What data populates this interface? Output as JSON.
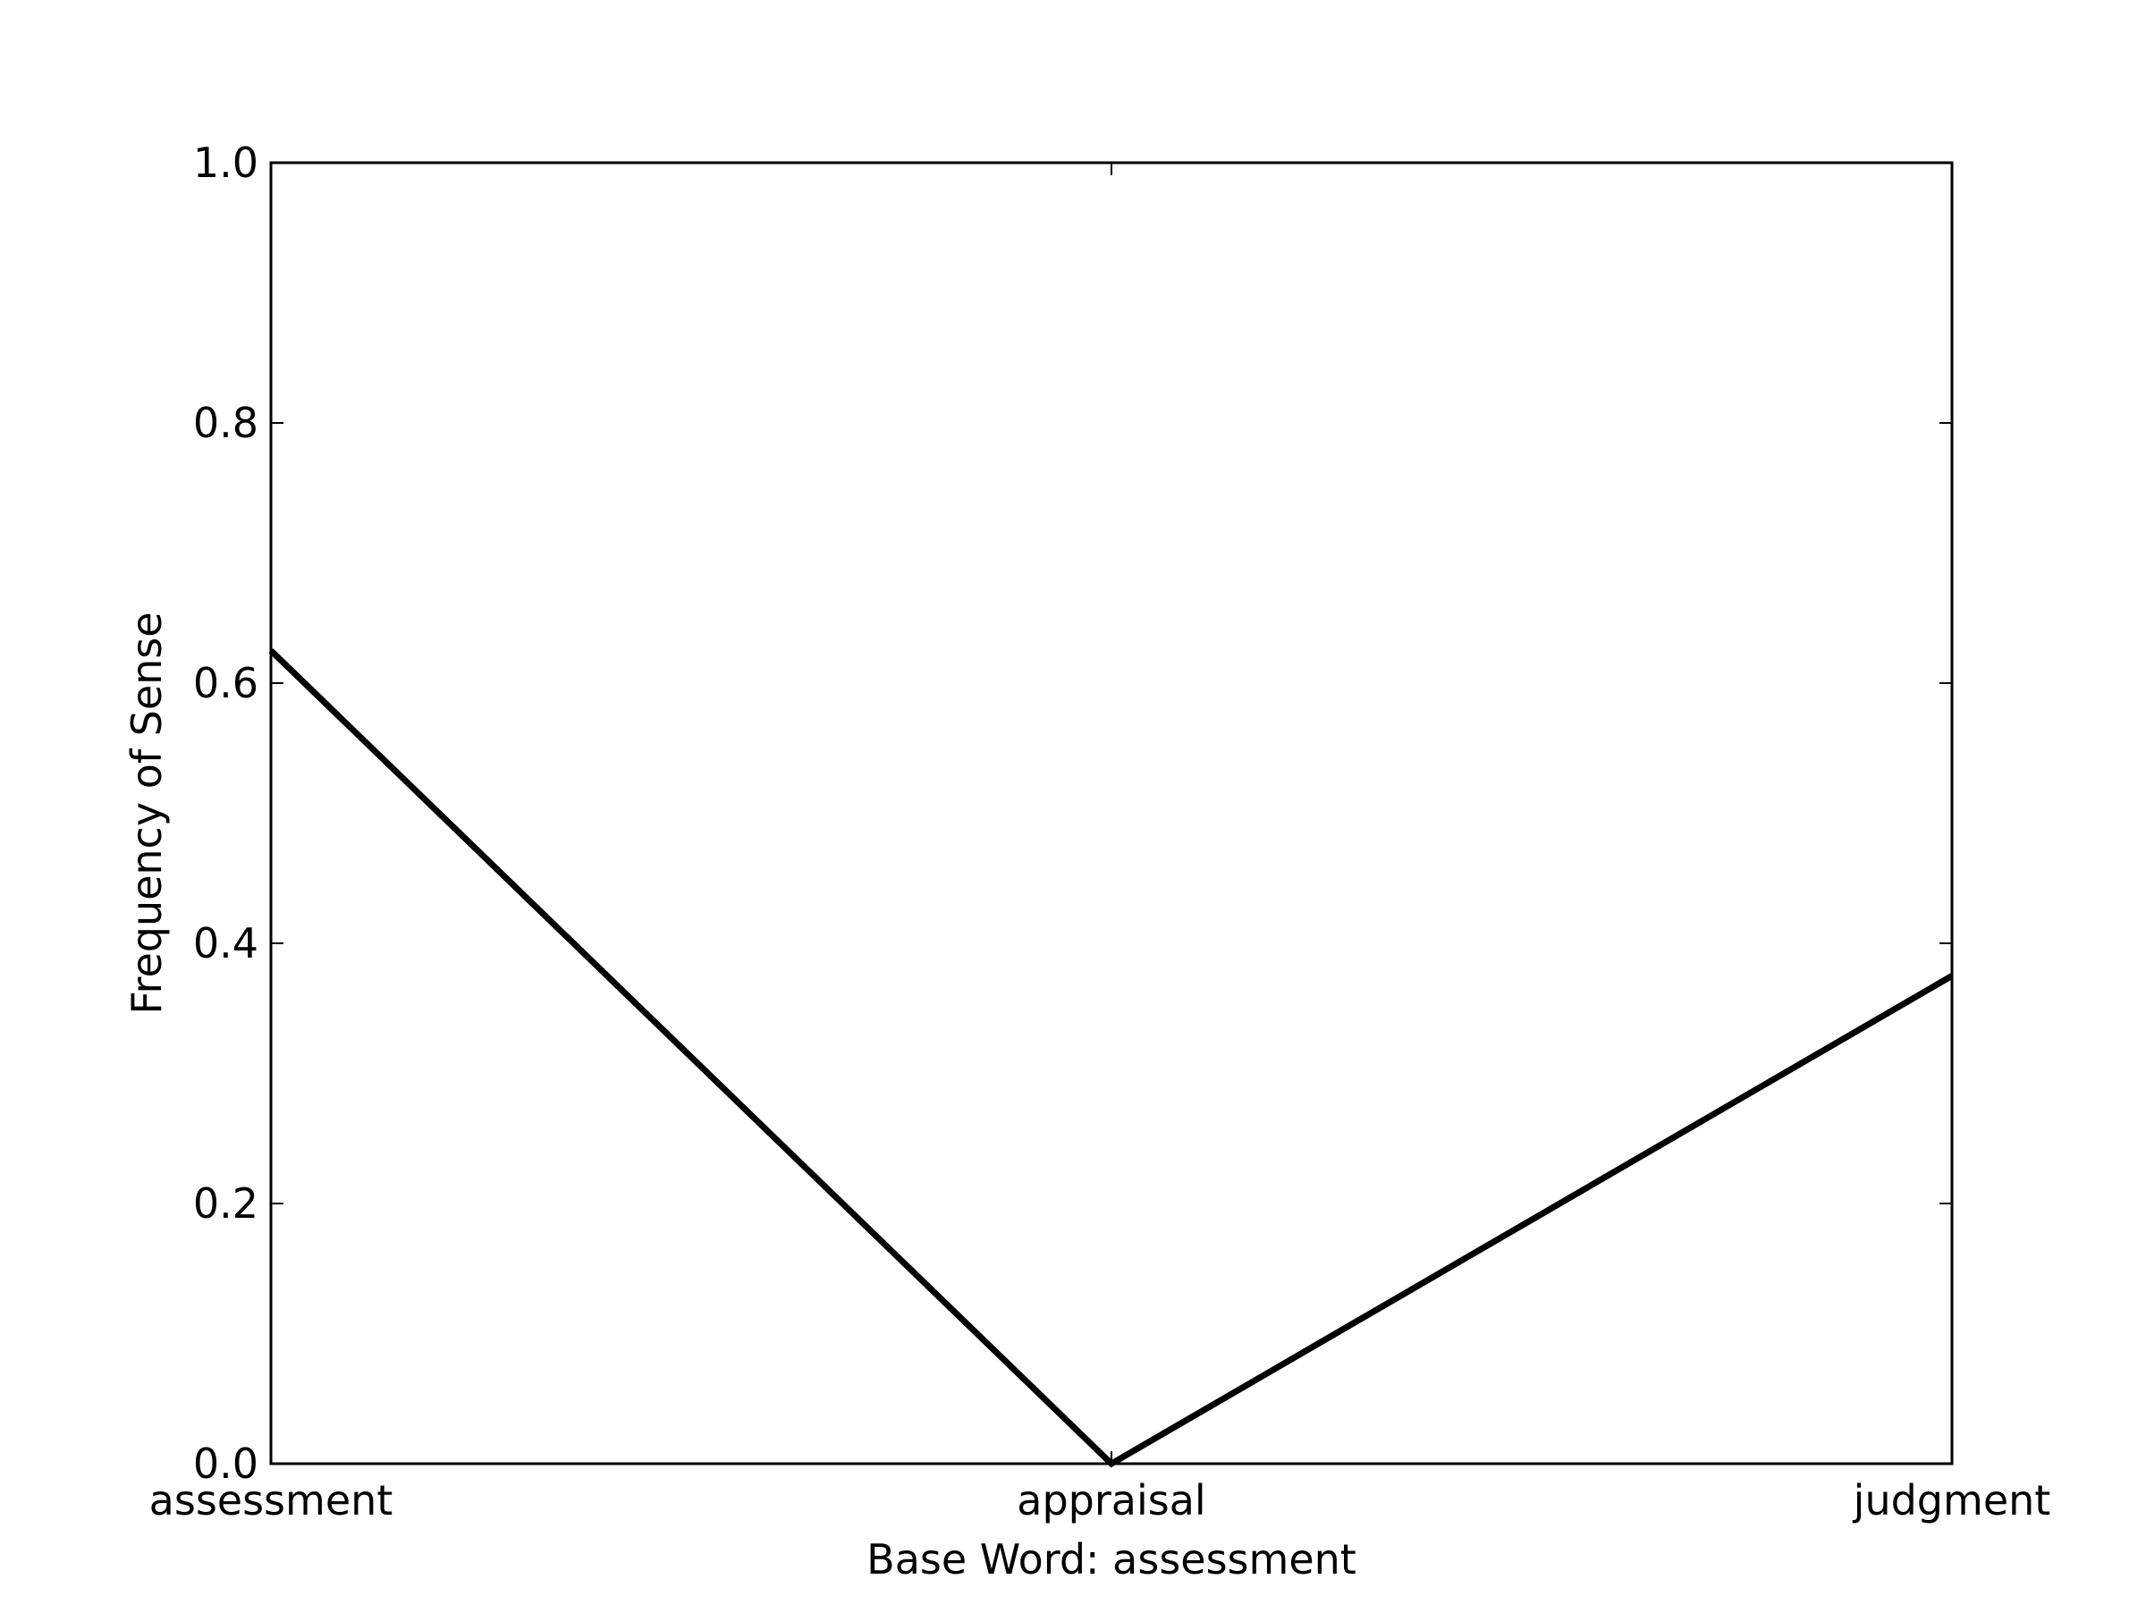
{
  "chart_data": {
    "type": "line",
    "title": "",
    "xlabel": "Base Word: assessment",
    "ylabel": "Frequency of Sense",
    "categories": [
      "assessment",
      "appraisal",
      "judgment"
    ],
    "series": [
      {
        "values": [
          0.625,
          0.0,
          0.375
        ],
        "color": "#000000"
      }
    ],
    "ylim": [
      0.0,
      1.0
    ],
    "yticks": [
      "0.0",
      "0.2",
      "0.4",
      "0.6",
      "0.8",
      "1.0"
    ],
    "grid": false,
    "legend": "none"
  }
}
